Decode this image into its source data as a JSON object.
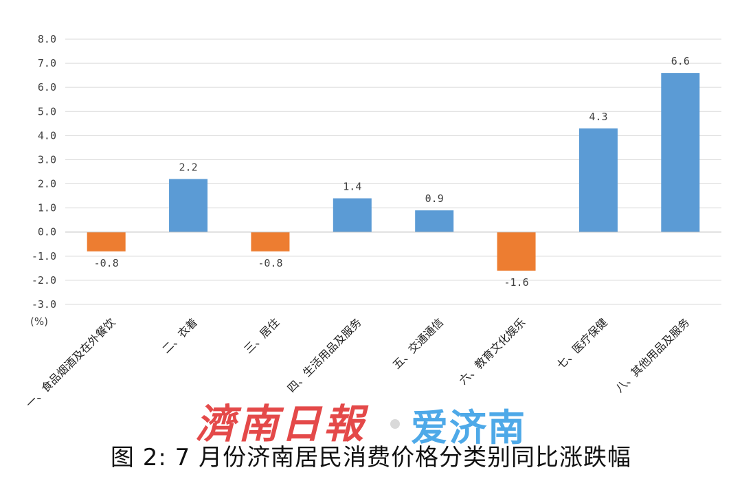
{
  "chart_data": {
    "type": "bar",
    "categories": [
      "一、食品烟酒及在外餐饮",
      "二、衣着",
      "三、居住",
      "四、生活用品及服务",
      "五、交通通信",
      "六、教育文化娱乐",
      "七、医疗保健",
      "八、其他用品及服务"
    ],
    "values": [
      -0.8,
      2.2,
      -0.8,
      1.4,
      0.9,
      -1.6,
      4.3,
      6.6
    ],
    "value_labels": [
      "-0.8",
      "2.2",
      "-0.8",
      "1.4",
      "0.9",
      "-1.6",
      "4.3",
      "6.6"
    ],
    "ylim": [
      -3.0,
      8.0
    ],
    "yticks": [
      "8.0",
      "7.0",
      "6.0",
      "5.0",
      "4.0",
      "3.0",
      "2.0",
      "1.0",
      "0.0",
      "-1.0",
      "-2.0",
      "-3.0"
    ],
    "ylabel": "(%)",
    "grid": true,
    "colors": {
      "positive": "#5b9bd5",
      "negative": "#ed7d31",
      "grid": "#d9d9d9",
      "text": "#404040"
    }
  },
  "watermark": {
    "left": "濟南日報",
    "right": "爱济南"
  },
  "caption": "图 2: 7 月份济南居民消费价格分类别同比涨跌幅"
}
